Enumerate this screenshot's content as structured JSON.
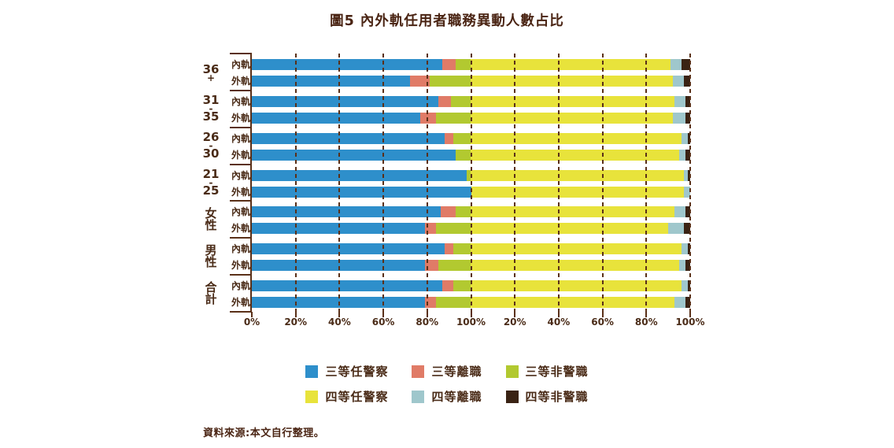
{
  "title": "圖5 內外軌任用者職務異動人數占比",
  "source": "資料來源:本文自行整理。",
  "colors": {
    "text": "#4A2B17",
    "grid": "#5A3018",
    "series": [
      "#2E8FCB",
      "#E07B67",
      "#B2C930",
      "#E8E33B",
      "#9FC7CC",
      "#3A2314"
    ]
  },
  "chart_data": {
    "type": "bar",
    "orientation": "horizontal",
    "stacked": true,
    "title": "圖5 內外軌任用者職務異動人數占比",
    "axis_note": "x axis shows two concatenated 100%-normalized halves: 三等 segments span 0–100%, 四等 segments span a second 0–100% (labeled 20%–100%)",
    "x_tick_labels": [
      "0%",
      "20%",
      "40%",
      "60%",
      "80%",
      "100%",
      "20%",
      "40%",
      "60%",
      "80%",
      "100%"
    ],
    "series": [
      {
        "name": "三等任警察",
        "color": "#2E8FCB"
      },
      {
        "name": "三等離職",
        "color": "#E07B67"
      },
      {
        "name": "三等非警職",
        "color": "#B2C930"
      },
      {
        "name": "四等任警察",
        "color": "#E8E33B"
      },
      {
        "name": "四等離職",
        "color": "#9FC7CC"
      },
      {
        "name": "四等非警職",
        "color": "#3A2314"
      }
    ],
    "groups": [
      {
        "label": "36+",
        "label_lines": [
          "36",
          "+"
        ],
        "rows": [
          {
            "track": "內軌",
            "values": [
              87,
              6,
              7,
              91,
              5,
              4
            ]
          },
          {
            "track": "外軌",
            "values": [
              72,
              9,
              19,
              92,
              5,
              3
            ]
          }
        ]
      },
      {
        "label": "31-35",
        "label_lines": [
          "31",
          "-",
          "35"
        ],
        "rows": [
          {
            "track": "內軌",
            "values": [
              85,
              6,
              9,
              93,
              5,
              2
            ]
          },
          {
            "track": "外軌",
            "values": [
              77,
              7,
              16,
              92,
              6,
              2
            ]
          }
        ]
      },
      {
        "label": "26-30",
        "label_lines": [
          "26",
          "-",
          "30"
        ],
        "rows": [
          {
            "track": "內軌",
            "values": [
              88,
              4,
              8,
              96,
              3,
              1
            ]
          },
          {
            "track": "外軌",
            "values": [
              93,
              0,
              7,
              95,
              3,
              2
            ]
          }
        ]
      },
      {
        "label": "21-25",
        "label_lines": [
          "21",
          "-",
          "25"
        ],
        "rows": [
          {
            "track": "內軌",
            "values": [
              98,
              0,
              2,
              97,
              2,
              1
            ]
          },
          {
            "track": "外軌",
            "values": [
              100,
              0,
              0,
              97,
              3,
              0
            ]
          }
        ]
      },
      {
        "label": "女性",
        "label_lines": [
          "女",
          "性"
        ],
        "rows": [
          {
            "track": "內軌",
            "values": [
              86,
              7,
              7,
              93,
              5,
              2
            ]
          },
          {
            "track": "外軌",
            "values": [
              79,
              5,
              16,
              90,
              7,
              3
            ]
          }
        ]
      },
      {
        "label": "男性",
        "label_lines": [
          "男",
          "性"
        ],
        "rows": [
          {
            "track": "內軌",
            "values": [
              88,
              4,
              8,
              96,
              3,
              1
            ]
          },
          {
            "track": "外軌",
            "values": [
              79,
              6,
              15,
              95,
              3,
              2
            ]
          }
        ]
      },
      {
        "label": "合計",
        "label_lines": [
          "合",
          "計"
        ],
        "rows": [
          {
            "track": "內軌",
            "values": [
              87,
              5,
              8,
              96,
              3,
              1
            ]
          },
          {
            "track": "外軌",
            "values": [
              79,
              5,
              16,
              93,
              5,
              2
            ]
          }
        ]
      }
    ],
    "legend_rows": [
      [
        "三等任警察",
        "三等離職",
        "三等非警職"
      ],
      [
        "四等任警察",
        "四等離職",
        "四等非警職"
      ]
    ],
    "legend_position": "bottom"
  }
}
